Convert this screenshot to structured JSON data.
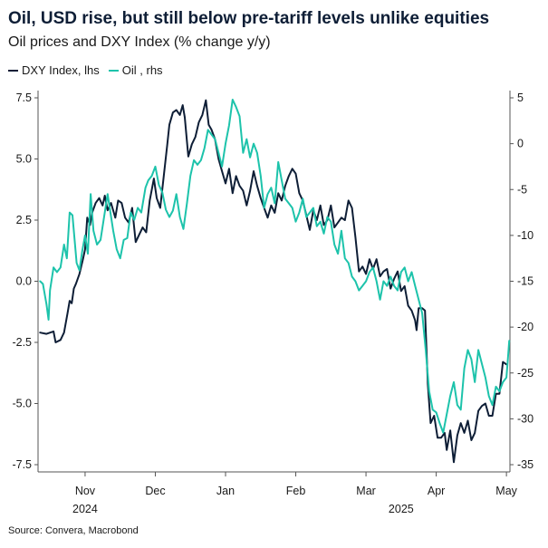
{
  "title": "Oil, USD rise, but still below pre-tariff levels unlike equities",
  "subtitle": "Oil prices and DXY Index (% change y/y)",
  "source": "Source: Convera, Macrobond",
  "colors": {
    "dxy": "#0e1e36",
    "oil": "#1dc3ab",
    "axis": "#555555"
  },
  "chart_data": {
    "type": "line",
    "title": "Oil, USD rise, but still below pre-tariff levels unlike equities",
    "subtitle": "Oil prices and DXY Index (% change y/y)",
    "grid": false,
    "legend_position": "top-left",
    "x_unit": "months since 1 Oct 2024",
    "x_range": [
      0.33,
      7.05
    ],
    "month_ticks": [
      {
        "label": "Nov",
        "x": 1.0
      },
      {
        "label": "Dec",
        "x": 2.0
      },
      {
        "label": "Jan",
        "x": 3.0
      },
      {
        "label": "Feb",
        "x": 4.0
      },
      {
        "label": "Mar",
        "x": 5.0
      },
      {
        "label": "Apr",
        "x": 6.0
      },
      {
        "label": "May",
        "x": 7.0
      }
    ],
    "year_labels": [
      {
        "label": "2024",
        "x": 1.0
      },
      {
        "label": "2025",
        "x": 5.5
      }
    ],
    "left_axis": {
      "label": "DXY Index, lhs",
      "ylim": [
        -7.5,
        7.5
      ],
      "ticks": [
        -7.5,
        -5.0,
        -2.5,
        0.0,
        2.5,
        5.0,
        7.5
      ]
    },
    "right_axis": {
      "label": "Oil , rhs",
      "ylim": [
        -35,
        5
      ],
      "ticks": [
        -35,
        -30,
        -25,
        -20,
        -15,
        -10,
        -5,
        0,
        5
      ]
    },
    "series": [
      {
        "name": "DXY Index, lhs",
        "axis": "left",
        "color": "#0e1e36",
        "points": [
          [
            0.36,
            -2.1
          ],
          [
            0.45,
            -2.15
          ],
          [
            0.55,
            -2.05
          ],
          [
            0.58,
            -2.5
          ],
          [
            0.65,
            -2.4
          ],
          [
            0.7,
            -2.1
          ],
          [
            0.75,
            -1.3
          ],
          [
            0.78,
            -0.8
          ],
          [
            0.81,
            -0.9
          ],
          [
            0.84,
            -0.3
          ],
          [
            0.87,
            -0.1
          ],
          [
            0.92,
            0.3
          ],
          [
            0.97,
            0.9
          ],
          [
            1.0,
            1.3
          ],
          [
            1.03,
            2.6
          ],
          [
            1.07,
            2.3
          ],
          [
            1.1,
            2.8
          ],
          [
            1.15,
            3.2
          ],
          [
            1.2,
            3.4
          ],
          [
            1.25,
            3.1
          ],
          [
            1.28,
            3.5
          ],
          [
            1.32,
            2.9
          ],
          [
            1.37,
            3.2
          ],
          [
            1.43,
            2.6
          ],
          [
            1.47,
            3.3
          ],
          [
            1.52,
            3.2
          ],
          [
            1.57,
            2.6
          ],
          [
            1.62,
            2.4
          ],
          [
            1.67,
            3.0
          ],
          [
            1.72,
            1.6
          ],
          [
            1.77,
            1.9
          ],
          [
            1.82,
            2.2
          ],
          [
            1.87,
            2.0
          ],
          [
            1.92,
            3.3
          ],
          [
            1.98,
            4.2
          ],
          [
            2.02,
            3.4
          ],
          [
            2.07,
            3.0
          ],
          [
            2.12,
            4.3
          ],
          [
            2.17,
            5.6
          ],
          [
            2.2,
            6.4
          ],
          [
            2.25,
            6.9
          ],
          [
            2.3,
            7.0
          ],
          [
            2.35,
            6.8
          ],
          [
            2.39,
            7.2
          ],
          [
            2.42,
            6.7
          ],
          [
            2.47,
            5.1
          ],
          [
            2.52,
            5.6
          ],
          [
            2.57,
            5.9
          ],
          [
            2.62,
            6.5
          ],
          [
            2.67,
            6.8
          ],
          [
            2.72,
            7.4
          ],
          [
            2.76,
            6.4
          ],
          [
            2.8,
            6.2
          ],
          [
            2.85,
            5.8
          ],
          [
            2.9,
            5.0
          ],
          [
            2.95,
            4.5
          ],
          [
            3.0,
            4.0
          ],
          [
            3.05,
            4.6
          ],
          [
            3.1,
            3.6
          ],
          [
            3.15,
            4.3
          ],
          [
            3.2,
            3.9
          ],
          [
            3.25,
            3.7
          ],
          [
            3.3,
            3.1
          ],
          [
            3.35,
            3.7
          ],
          [
            3.4,
            4.5
          ],
          [
            3.45,
            3.9
          ],
          [
            3.5,
            3.4
          ],
          [
            3.55,
            3.0
          ],
          [
            3.6,
            2.6
          ],
          [
            3.65,
            3.1
          ],
          [
            3.7,
            2.8
          ],
          [
            3.75,
            3.6
          ],
          [
            3.8,
            3.3
          ],
          [
            3.85,
            3.9
          ],
          [
            3.9,
            4.3
          ],
          [
            3.95,
            4.6
          ],
          [
            4.0,
            4.4
          ],
          [
            4.05,
            3.6
          ],
          [
            4.1,
            3.3
          ],
          [
            4.15,
            2.7
          ],
          [
            4.2,
            2.1
          ],
          [
            4.25,
            2.9
          ],
          [
            4.3,
            2.5
          ],
          [
            4.35,
            3.1
          ],
          [
            4.4,
            2.3
          ],
          [
            4.45,
            2.5
          ],
          [
            4.5,
            3.1
          ],
          [
            4.55,
            2.2
          ],
          [
            4.6,
            2.4
          ],
          [
            4.65,
            2.6
          ],
          [
            4.7,
            2.5
          ],
          [
            4.75,
            3.3
          ],
          [
            4.8,
            3.0
          ],
          [
            4.85,
            1.8
          ],
          [
            4.9,
            0.4
          ],
          [
            4.95,
            0.6
          ],
          [
            5.0,
            0.3
          ],
          [
            5.05,
            0.9
          ],
          [
            5.1,
            0.5
          ],
          [
            5.15,
            0.9
          ],
          [
            5.2,
            0.2
          ],
          [
            5.25,
            0.4
          ],
          [
            5.3,
            0.5
          ],
          [
            5.35,
            -0.3
          ],
          [
            5.4,
            0.1
          ],
          [
            5.45,
            0.4
          ],
          [
            5.5,
            -0.4
          ],
          [
            5.55,
            -0.2
          ],
          [
            5.6,
            -1.0
          ],
          [
            5.65,
            -1.2
          ],
          [
            5.7,
            -1.6
          ],
          [
            5.72,
            -2.0
          ],
          [
            5.75,
            -1.1
          ],
          [
            5.8,
            -1.1
          ],
          [
            5.84,
            -1.2
          ],
          [
            5.88,
            -4.2
          ],
          [
            5.92,
            -5.8
          ],
          [
            5.97,
            -5.5
          ],
          [
            6.02,
            -6.4
          ],
          [
            6.07,
            -6.4
          ],
          [
            6.12,
            -6.2
          ],
          [
            6.15,
            -6.9
          ],
          [
            6.2,
            -6.1
          ],
          [
            6.25,
            -7.4
          ],
          [
            6.3,
            -6.3
          ],
          [
            6.35,
            -5.8
          ],
          [
            6.4,
            -6.2
          ],
          [
            6.45,
            -5.7
          ],
          [
            6.5,
            -6.5
          ],
          [
            6.55,
            -6.2
          ],
          [
            6.6,
            -5.3
          ],
          [
            6.65,
            -5.1
          ],
          [
            6.7,
            -5.0
          ],
          [
            6.75,
            -5.5
          ],
          [
            6.8,
            -5.5
          ],
          [
            6.85,
            -4.6
          ],
          [
            6.9,
            -4.6
          ],
          [
            6.95,
            -3.3
          ],
          [
            7.0,
            -3.4
          ]
        ]
      },
      {
        "name": "Oil , rhs",
        "axis": "right",
        "color": "#1dc3ab",
        "points": [
          [
            0.36,
            -15
          ],
          [
            0.4,
            -15.3
          ],
          [
            0.45,
            -17.5
          ],
          [
            0.48,
            -19.2
          ],
          [
            0.5,
            -16
          ],
          [
            0.55,
            -13.5
          ],
          [
            0.6,
            -14
          ],
          [
            0.65,
            -13.5
          ],
          [
            0.7,
            -11
          ],
          [
            0.74,
            -12.5
          ],
          [
            0.78,
            -7.5
          ],
          [
            0.82,
            -7.8
          ],
          [
            0.88,
            -13
          ],
          [
            0.92,
            -13.8
          ],
          [
            0.96,
            -11.7
          ],
          [
            1.0,
            -10
          ],
          [
            1.04,
            -12
          ],
          [
            1.08,
            -5.5
          ],
          [
            1.12,
            -9.5
          ],
          [
            1.17,
            -11
          ],
          [
            1.22,
            -10.5
          ],
          [
            1.27,
            -8
          ],
          [
            1.32,
            -5.5
          ],
          [
            1.36,
            -7.5
          ],
          [
            1.4,
            -9.5
          ],
          [
            1.45,
            -11.5
          ],
          [
            1.5,
            -12.5
          ],
          [
            1.55,
            -10.5
          ],
          [
            1.6,
            -10.3
          ],
          [
            1.65,
            -7.5
          ],
          [
            1.7,
            -8.3
          ],
          [
            1.75,
            -7.0
          ],
          [
            1.8,
            -7.5
          ],
          [
            1.86,
            -4.8
          ],
          [
            1.9,
            -4.0
          ],
          [
            1.95,
            -3.5
          ],
          [
            2.0,
            -2.5
          ],
          [
            2.05,
            -4.5
          ],
          [
            2.1,
            -5.3
          ],
          [
            2.15,
            -7.2
          ],
          [
            2.2,
            -8.0
          ],
          [
            2.25,
            -7.3
          ],
          [
            2.3,
            -5.5
          ],
          [
            2.35,
            -8.0
          ],
          [
            2.4,
            -9.3
          ],
          [
            2.45,
            -6.5
          ],
          [
            2.5,
            -3.5
          ],
          [
            2.55,
            -1.8
          ],
          [
            2.6,
            -2.3
          ],
          [
            2.65,
            -1.8
          ],
          [
            2.7,
            -0.5
          ],
          [
            2.75,
            1.5
          ],
          [
            2.8,
            1.0
          ],
          [
            2.85,
            0.5
          ],
          [
            2.9,
            -1.0
          ],
          [
            2.95,
            -2.5
          ],
          [
            3.0,
            0.0
          ],
          [
            3.05,
            2.0
          ],
          [
            3.1,
            4.8
          ],
          [
            3.15,
            4.0
          ],
          [
            3.2,
            3.0
          ],
          [
            3.25,
            -1.0
          ],
          [
            3.3,
            0.5
          ],
          [
            3.35,
            -1.5
          ],
          [
            3.4,
            0.0
          ],
          [
            3.45,
            -1.0
          ],
          [
            3.5,
            -3.5
          ],
          [
            3.55,
            -7.0
          ],
          [
            3.6,
            -5.5
          ],
          [
            3.65,
            -4.8
          ],
          [
            3.7,
            -6.5
          ],
          [
            3.75,
            -2.0
          ],
          [
            3.8,
            -4.0
          ],
          [
            3.85,
            -6.0
          ],
          [
            3.9,
            -6.5
          ],
          [
            3.95,
            -7.0
          ],
          [
            4.0,
            -8.5
          ],
          [
            4.05,
            -7.5
          ],
          [
            4.1,
            -6.0
          ],
          [
            4.15,
            -8.0
          ],
          [
            4.2,
            -7.5
          ],
          [
            4.25,
            -7.0
          ],
          [
            4.3,
            -9.0
          ],
          [
            4.35,
            -8.5
          ],
          [
            4.4,
            -9.8
          ],
          [
            4.45,
            -8.0
          ],
          [
            4.5,
            -8.5
          ],
          [
            4.55,
            -11.0
          ],
          [
            4.6,
            -12.0
          ],
          [
            4.65,
            -9.5
          ],
          [
            4.7,
            -12.5
          ],
          [
            4.75,
            -13.0
          ],
          [
            4.8,
            -14.5
          ],
          [
            4.85,
            -15.0
          ],
          [
            4.9,
            -16.0
          ],
          [
            4.95,
            -15.5
          ],
          [
            5.0,
            -15.0
          ],
          [
            5.05,
            -14.0
          ],
          [
            5.1,
            -13.5
          ],
          [
            5.15,
            -15.0
          ],
          [
            5.2,
            -17.0
          ],
          [
            5.25,
            -15.0
          ],
          [
            5.3,
            -15.5
          ],
          [
            5.35,
            -14.5
          ],
          [
            5.4,
            -15.5
          ],
          [
            5.45,
            -16.0
          ],
          [
            5.5,
            -14.0
          ],
          [
            5.55,
            -13.5
          ],
          [
            5.6,
            -15.0
          ],
          [
            5.65,
            -14.0
          ],
          [
            5.7,
            -15.5
          ],
          [
            5.75,
            -17.0
          ],
          [
            5.8,
            -18.5
          ],
          [
            5.85,
            -22.5
          ],
          [
            5.9,
            -27.0
          ],
          [
            5.95,
            -29.0
          ],
          [
            6.0,
            -29.3
          ],
          [
            6.05,
            -30.5
          ],
          [
            6.1,
            -31.5
          ],
          [
            6.15,
            -29.5
          ],
          [
            6.2,
            -27.5
          ],
          [
            6.25,
            -26.0
          ],
          [
            6.3,
            -28.5
          ],
          [
            6.35,
            -29.0
          ],
          [
            6.4,
            -24.5
          ],
          [
            6.45,
            -22.5
          ],
          [
            6.5,
            -23.5
          ],
          [
            6.55,
            -26.0
          ],
          [
            6.6,
            -22.5
          ],
          [
            6.65,
            -24.0
          ],
          [
            6.7,
            -25.5
          ],
          [
            6.75,
            -27.5
          ],
          [
            6.8,
            -28.5
          ],
          [
            6.85,
            -26.5
          ],
          [
            6.9,
            -27.0
          ],
          [
            6.95,
            -26.0
          ],
          [
            7.0,
            -25.5
          ],
          [
            7.02,
            -23.5
          ],
          [
            7.04,
            -21.5
          ]
        ]
      }
    ]
  }
}
